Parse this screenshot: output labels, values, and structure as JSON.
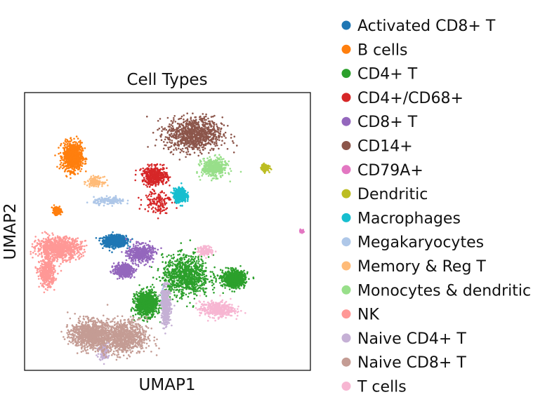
{
  "chart_data": {
    "type": "scatter",
    "title": "Cell Types",
    "xlabel": "UMAP1",
    "ylabel": "UMAP2",
    "grid": false,
    "legend_placement": "right",
    "x_ticks": false,
    "y_ticks": false,
    "series": [
      {
        "name": "Activated CD8+ T",
        "color": "#1f77b4",
        "clusters": [
          {
            "center": [
              3.0,
              4.55
            ],
            "spread": [
              0.35,
              0.18
            ],
            "density": "high"
          }
        ]
      },
      {
        "name": "B cells",
        "color": "#ff7f0e",
        "clusters": [
          {
            "center": [
              1.5,
              7.6
            ],
            "spread": [
              0.3,
              0.45
            ],
            "density": "high"
          },
          {
            "center": [
              0.95,
              5.65
            ],
            "spread": [
              0.1,
              0.1
            ],
            "density": "medium"
          }
        ]
      },
      {
        "name": "CD4+ T",
        "color": "#2ca02c",
        "clusters": [
          {
            "center": [
              5.5,
              3.3
            ],
            "spread": [
              0.75,
              0.65
            ],
            "density": "high"
          },
          {
            "center": [
              4.1,
              2.3
            ],
            "spread": [
              0.35,
              0.4
            ],
            "density": "high"
          },
          {
            "center": [
              7.2,
              3.2
            ],
            "spread": [
              0.35,
              0.25
            ],
            "density": "high"
          }
        ]
      },
      {
        "name": "CD4+/CD68+",
        "color": "#d62728",
        "clusters": [
          {
            "center": [
              4.4,
              6.9
            ],
            "spread": [
              0.4,
              0.3
            ],
            "density": "medium"
          },
          {
            "center": [
              4.5,
              6.0
            ],
            "spread": [
              0.45,
              0.4
            ],
            "density": "low"
          }
        ]
      },
      {
        "name": "CD8+ T",
        "color": "#9467bd",
        "clusters": [
          {
            "center": [
              3.9,
              4.1
            ],
            "spread": [
              0.4,
              0.3
            ],
            "density": "medium"
          },
          {
            "center": [
              3.3,
              3.5
            ],
            "spread": [
              0.3,
              0.2
            ],
            "density": "medium"
          }
        ]
      },
      {
        "name": "CD14+",
        "color": "#8c564b",
        "clusters": [
          {
            "center": [
              5.8,
              8.4
            ],
            "spread": [
              0.9,
              0.55
            ],
            "density": "high"
          }
        ]
      },
      {
        "name": "CD79A+",
        "color": "#e377c2",
        "clusters": [
          {
            "center": [
              9.6,
              4.9
            ],
            "spread": [
              0.05,
              0.04
            ],
            "density": "low"
          }
        ]
      },
      {
        "name": "Dendritic",
        "color": "#bcbd22",
        "clusters": [
          {
            "center": [
              8.3,
              7.2
            ],
            "spread": [
              0.12,
              0.12
            ],
            "density": "low"
          }
        ]
      },
      {
        "name": "Macrophages",
        "color": "#17becf",
        "clusters": [
          {
            "center": [
              5.3,
              6.2
            ],
            "spread": [
              0.2,
              0.22
            ],
            "density": "medium"
          }
        ]
      },
      {
        "name": "Megakaryocytes",
        "color": "#aec7e8",
        "clusters": [
          {
            "center": [
              2.8,
              6.0
            ],
            "spread": [
              0.5,
              0.12
            ],
            "density": "low"
          },
          {
            "center": [
              4.7,
              2.5
            ],
            "spread": [
              0.05,
              0.25
            ],
            "density": "low"
          }
        ]
      },
      {
        "name": "Memory & Reg T",
        "color": "#ffbb78",
        "clusters": [
          {
            "center": [
              2.3,
              6.7
            ],
            "spread": [
              0.25,
              0.15
            ],
            "density": "low"
          }
        ]
      },
      {
        "name": "Monocytes & dendritic",
        "color": "#98df8a",
        "clusters": [
          {
            "center": [
              6.5,
              7.2
            ],
            "spread": [
              0.4,
              0.3
            ],
            "density": "medium"
          }
        ]
      },
      {
        "name": "NK",
        "color": "#ff9896",
        "clusters": [
          {
            "center": [
              1.0,
              4.3
            ],
            "spread": [
              0.7,
              0.35
            ],
            "density": "high"
          },
          {
            "center": [
              0.6,
              3.4
            ],
            "spread": [
              0.25,
              0.45
            ],
            "density": "medium"
          }
        ]
      },
      {
        "name": "Naive CD4+ T",
        "color": "#c5b0d5",
        "clusters": [
          {
            "center": [
              4.8,
              2.2
            ],
            "spread": [
              0.15,
              0.6
            ],
            "density": "medium"
          },
          {
            "center": [
              2.6,
              0.6
            ],
            "spread": [
              0.15,
              0.3
            ],
            "density": "low"
          }
        ]
      },
      {
        "name": "Naive CD8+ T",
        "color": "#c49c94",
        "clusters": [
          {
            "center": [
              2.1,
              1.2
            ],
            "spread": [
              0.6,
              0.45
            ],
            "density": "high"
          },
          {
            "center": [
              3.3,
              1.1
            ],
            "spread": [
              0.75,
              0.55
            ],
            "density": "high"
          }
        ]
      },
      {
        "name": "T cells",
        "color": "#f7b6d2",
        "clusters": [
          {
            "center": [
              6.6,
              2.1
            ],
            "spread": [
              0.55,
              0.25
            ],
            "density": "medium"
          },
          {
            "center": [
              6.2,
              4.2
            ],
            "spread": [
              0.25,
              0.15
            ],
            "density": "low"
          }
        ]
      }
    ],
    "xlim": [
      -0.2,
      9.9
    ],
    "ylim": [
      -0.1,
      9.9
    ]
  }
}
